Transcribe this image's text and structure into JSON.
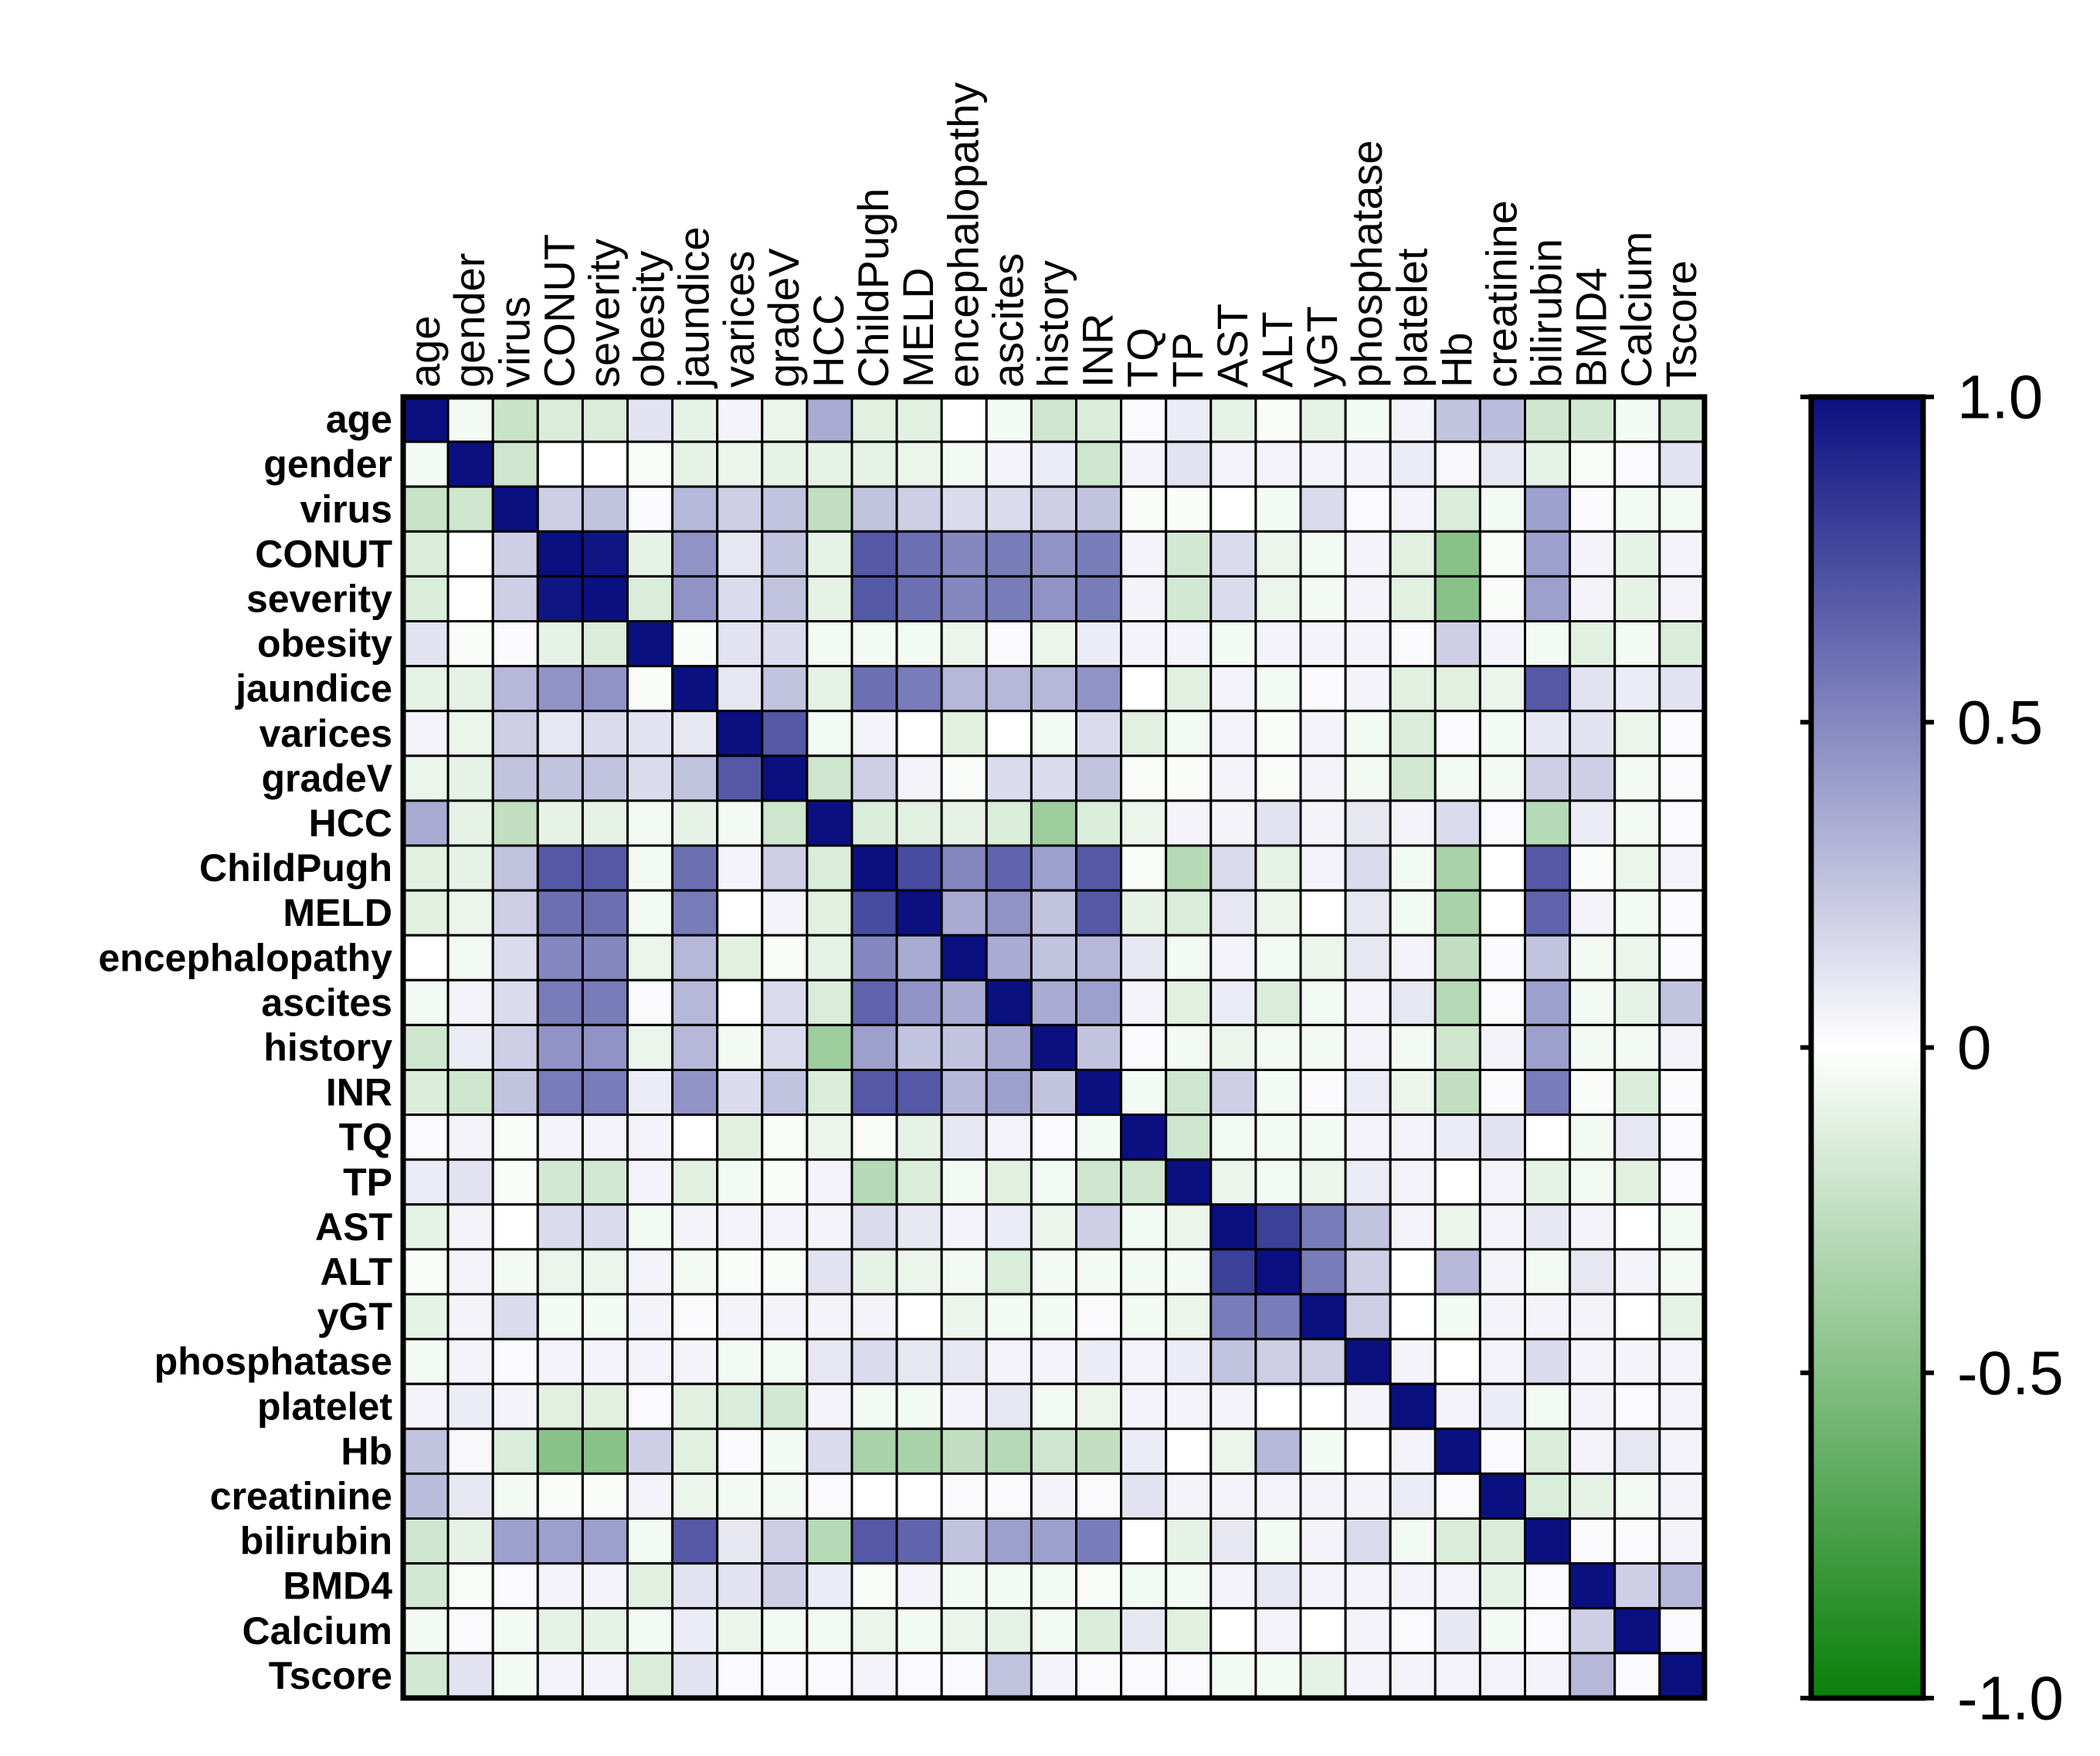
{
  "chart_data": {
    "type": "heatmap",
    "title": "",
    "variables": [
      "age",
      "gender",
      "virus",
      "CONUT",
      "severity",
      "obesity",
      "jaundice",
      "varices",
      "gradeV",
      "HCC",
      "ChildPugh",
      "MELD",
      "encephalopathy",
      "ascites",
      "history",
      "INR",
      "TQ",
      "TP",
      "AST",
      "ALT",
      "yGT",
      "phosphatase",
      "platelet",
      "Hb",
      "creatinine",
      "bilirubin",
      "BMD4",
      "Calcium",
      "Tscore"
    ],
    "x_tick_labels": [
      "age",
      "gender",
      "virus",
      "CONUT",
      "severity",
      "obesity",
      "jaundice",
      "varices",
      "gradeV",
      "HCC",
      "ChildPugh",
      "MELD",
      "encephalopathy",
      "ascites",
      "history",
      "INR",
      "TQ",
      "TP",
      "AST",
      "ALT",
      "yGT",
      "phosphatase",
      "platelet",
      "Hb",
      "creatinine",
      "bilirubin",
      "BMD4",
      "Calcium",
      "Tscore"
    ],
    "y_tick_labels": [
      "age",
      "gender",
      "virus",
      "CONUT",
      "severity",
      "obesity",
      "jaundice",
      "varices",
      "gradeV",
      "HCC",
      "ChildPugh",
      "MELD",
      "encephalopathy",
      "ascites",
      "history",
      "INR",
      "TQ",
      "TP",
      "AST",
      "ALT",
      "yGT",
      "phosphatase",
      "platelet",
      "Hb",
      "creatinine",
      "bilirubin",
      "BMD4",
      "Calcium",
      "Tscore"
    ],
    "color_scale": {
      "min": -1.0,
      "max": 1.0,
      "min_color": "#0a7f0a",
      "mid_color": "#ffffff",
      "max_color": "#0a1080",
      "ticks": [
        1.0,
        0.5,
        0,
        -0.5,
        -1.0
      ],
      "tick_labels": [
        "1.0",
        "0.5",
        "0",
        "-0.5",
        "-1.0"
      ],
      "position": "right"
    },
    "matrix": [
      [
        1.0,
        -0.05,
        -0.22,
        -0.15,
        -0.15,
        0.12,
        -0.1,
        0.05,
        -0.08,
        0.35,
        -0.12,
        -0.12,
        0.0,
        -0.05,
        -0.2,
        -0.15,
        0.02,
        0.08,
        -0.1,
        -0.02,
        -0.1,
        -0.05,
        0.05,
        0.25,
        0.28,
        -0.2,
        -0.18,
        -0.05,
        -0.18
      ],
      [
        -0.05,
        1.0,
        -0.2,
        0.0,
        0.0,
        -0.02,
        -0.1,
        -0.08,
        -0.1,
        -0.1,
        -0.1,
        -0.08,
        -0.05,
        0.05,
        0.08,
        -0.2,
        0.05,
        0.12,
        0.05,
        0.05,
        0.05,
        0.05,
        0.08,
        0.03,
        0.1,
        -0.1,
        -0.03,
        0.02,
        0.12
      ],
      [
        -0.22,
        -0.2,
        1.0,
        0.2,
        0.25,
        0.02,
        0.3,
        0.2,
        0.25,
        -0.25,
        0.25,
        0.2,
        0.15,
        0.15,
        0.2,
        0.25,
        -0.02,
        -0.02,
        0.0,
        -0.05,
        0.15,
        0.02,
        0.05,
        -0.15,
        -0.05,
        0.4,
        0.02,
        -0.05,
        -0.05
      ],
      [
        -0.15,
        0.0,
        0.2,
        1.0,
        0.98,
        -0.1,
        0.45,
        0.1,
        0.25,
        -0.1,
        0.7,
        0.6,
        0.5,
        0.55,
        0.45,
        0.55,
        0.05,
        -0.18,
        0.15,
        -0.08,
        -0.05,
        0.05,
        -0.12,
        -0.48,
        -0.02,
        0.4,
        0.05,
        -0.1,
        0.05
      ],
      [
        -0.15,
        0.0,
        0.2,
        0.98,
        1.0,
        -0.15,
        0.45,
        0.15,
        0.25,
        -0.1,
        0.7,
        0.6,
        0.5,
        0.55,
        0.45,
        0.55,
        0.05,
        -0.18,
        0.15,
        -0.08,
        -0.05,
        0.05,
        -0.12,
        -0.48,
        -0.02,
        0.4,
        0.05,
        -0.1,
        0.05
      ],
      [
        0.12,
        -0.02,
        0.02,
        -0.1,
        -0.15,
        1.0,
        -0.02,
        0.12,
        0.15,
        -0.05,
        -0.05,
        -0.05,
        -0.08,
        0.02,
        -0.08,
        0.08,
        0.05,
        0.05,
        -0.05,
        0.05,
        0.05,
        0.05,
        0.02,
        0.2,
        0.05,
        -0.05,
        -0.12,
        -0.05,
        -0.15
      ],
      [
        -0.1,
        -0.1,
        0.3,
        0.45,
        0.45,
        -0.02,
        1.0,
        0.1,
        0.25,
        -0.1,
        0.6,
        0.55,
        0.3,
        0.3,
        0.3,
        0.45,
        0.0,
        -0.12,
        0.05,
        -0.05,
        0.02,
        0.05,
        -0.12,
        -0.12,
        -0.08,
        0.7,
        0.12,
        0.08,
        0.12
      ],
      [
        0.05,
        -0.08,
        0.2,
        0.1,
        0.15,
        0.12,
        0.1,
        1.0,
        0.7,
        -0.05,
        0.05,
        0.0,
        -0.12,
        0.0,
        -0.05,
        0.15,
        -0.12,
        -0.05,
        0.05,
        -0.02,
        0.05,
        -0.05,
        -0.15,
        0.02,
        -0.05,
        0.1,
        0.12,
        -0.08,
        0.02
      ],
      [
        -0.08,
        -0.1,
        0.25,
        0.25,
        0.25,
        0.15,
        0.25,
        0.7,
        1.0,
        -0.2,
        0.2,
        0.05,
        -0.02,
        0.15,
        0.15,
        0.25,
        -0.02,
        -0.02,
        0.05,
        -0.02,
        0.05,
        -0.05,
        -0.18,
        -0.05,
        -0.05,
        0.2,
        0.2,
        -0.05,
        0.02
      ],
      [
        0.35,
        -0.1,
        -0.25,
        -0.1,
        -0.1,
        -0.05,
        -0.1,
        -0.05,
        -0.2,
        1.0,
        -0.15,
        -0.12,
        -0.1,
        -0.15,
        -0.4,
        -0.15,
        -0.08,
        0.05,
        0.05,
        0.12,
        0.05,
        0.1,
        0.05,
        0.15,
        0.02,
        -0.3,
        0.08,
        -0.05,
        0.02
      ],
      [
        -0.12,
        -0.1,
        0.25,
        0.7,
        0.7,
        -0.05,
        0.6,
        0.05,
        0.2,
        -0.15,
        1.0,
        0.75,
        0.5,
        0.65,
        0.4,
        0.7,
        -0.02,
        -0.3,
        0.15,
        -0.1,
        0.05,
        0.15,
        -0.05,
        -0.35,
        0.0,
        0.7,
        -0.02,
        -0.08,
        0.05
      ],
      [
        -0.12,
        -0.08,
        0.2,
        0.6,
        0.6,
        -0.05,
        0.55,
        0.0,
        0.05,
        -0.12,
        0.75,
        1.0,
        0.35,
        0.45,
        0.25,
        0.7,
        -0.1,
        -0.15,
        0.1,
        -0.08,
        0.0,
        0.1,
        -0.05,
        -0.35,
        0.0,
        0.65,
        0.05,
        -0.05,
        0.02
      ],
      [
        0.0,
        -0.05,
        0.15,
        0.5,
        0.5,
        -0.08,
        0.3,
        -0.12,
        -0.02,
        -0.1,
        0.5,
        0.35,
        1.0,
        0.35,
        0.25,
        0.3,
        0.1,
        -0.05,
        0.05,
        -0.05,
        -0.08,
        0.1,
        0.05,
        -0.25,
        0.02,
        0.25,
        -0.05,
        -0.08,
        0.02
      ],
      [
        -0.05,
        0.05,
        0.15,
        0.55,
        0.55,
        0.02,
        0.3,
        0.0,
        0.15,
        -0.15,
        0.65,
        0.45,
        0.35,
        1.0,
        0.35,
        0.4,
        0.05,
        -0.12,
        0.08,
        -0.15,
        -0.05,
        0.05,
        0.1,
        -0.3,
        0.02,
        0.4,
        -0.05,
        -0.1,
        0.25
      ],
      [
        -0.2,
        0.08,
        0.2,
        0.45,
        0.45,
        -0.08,
        0.3,
        -0.05,
        0.15,
        -0.4,
        0.4,
        0.25,
        0.25,
        0.35,
        1.0,
        0.25,
        0.02,
        -0.05,
        -0.08,
        -0.05,
        -0.05,
        0.05,
        -0.05,
        -0.2,
        0.05,
        0.4,
        -0.05,
        -0.05,
        0.05
      ],
      [
        -0.15,
        -0.2,
        0.25,
        0.55,
        0.55,
        0.08,
        0.45,
        0.15,
        0.25,
        -0.15,
        0.7,
        0.7,
        0.3,
        0.4,
        0.25,
        1.0,
        -0.05,
        -0.2,
        0.2,
        -0.05,
        0.02,
        0.08,
        -0.08,
        -0.25,
        0.02,
        0.55,
        -0.02,
        -0.15,
        0.02
      ],
      [
        0.02,
        0.05,
        -0.02,
        0.05,
        0.05,
        0.05,
        0.0,
        -0.12,
        -0.02,
        -0.08,
        -0.02,
        -0.1,
        0.1,
        0.05,
        0.02,
        -0.05,
        1.0,
        -0.2,
        -0.05,
        -0.05,
        -0.05,
        0.05,
        0.05,
        0.08,
        0.12,
        0.0,
        -0.05,
        0.1,
        0.02
      ],
      [
        0.08,
        0.12,
        -0.02,
        -0.18,
        -0.18,
        0.05,
        -0.12,
        -0.05,
        -0.02,
        0.05,
        -0.3,
        -0.15,
        -0.05,
        -0.12,
        -0.05,
        -0.2,
        -0.2,
        1.0,
        -0.08,
        -0.05,
        -0.08,
        0.08,
        0.05,
        0.0,
        0.05,
        -0.1,
        -0.05,
        -0.12,
        0.02
      ],
      [
        -0.1,
        0.05,
        0.0,
        0.15,
        0.15,
        -0.05,
        0.05,
        0.05,
        0.05,
        0.05,
        0.15,
        0.1,
        0.05,
        0.08,
        -0.08,
        0.2,
        -0.05,
        -0.08,
        1.0,
        0.8,
        0.55,
        0.25,
        0.05,
        -0.08,
        0.05,
        0.1,
        0.05,
        0.0,
        -0.05
      ],
      [
        -0.02,
        0.05,
        -0.05,
        -0.08,
        -0.08,
        0.05,
        -0.05,
        -0.02,
        -0.02,
        0.12,
        -0.1,
        -0.08,
        -0.05,
        -0.15,
        -0.05,
        -0.05,
        -0.05,
        -0.05,
        0.8,
        1.0,
        0.55,
        0.2,
        0.0,
        0.3,
        0.05,
        -0.05,
        0.1,
        0.05,
        -0.05
      ],
      [
        -0.1,
        0.05,
        0.15,
        -0.05,
        -0.05,
        0.05,
        0.02,
        0.05,
        0.05,
        0.05,
        0.05,
        0.0,
        -0.08,
        -0.05,
        -0.05,
        0.02,
        -0.05,
        -0.08,
        0.55,
        0.55,
        1.0,
        0.2,
        0.0,
        -0.05,
        0.05,
        0.05,
        0.05,
        0.0,
        -0.1
      ],
      [
        -0.05,
        0.05,
        0.02,
        0.05,
        0.05,
        0.05,
        0.05,
        -0.05,
        -0.05,
        0.1,
        0.15,
        0.1,
        0.1,
        0.05,
        0.05,
        0.08,
        0.05,
        0.08,
        0.25,
        0.2,
        0.2,
        1.0,
        0.05,
        0.0,
        0.05,
        0.15,
        0.05,
        0.05,
        0.05
      ],
      [
        0.05,
        0.08,
        0.05,
        -0.12,
        -0.12,
        0.02,
        -0.12,
        -0.15,
        -0.18,
        0.05,
        -0.05,
        -0.05,
        0.05,
        0.1,
        -0.05,
        -0.08,
        0.05,
        0.05,
        0.05,
        0.0,
        0.0,
        0.05,
        1.0,
        0.05,
        0.08,
        -0.05,
        0.05,
        0.02,
        0.05
      ],
      [
        0.25,
        0.03,
        -0.15,
        -0.48,
        -0.48,
        0.2,
        -0.12,
        0.02,
        -0.05,
        0.15,
        -0.35,
        -0.35,
        -0.25,
        -0.3,
        -0.2,
        -0.25,
        0.08,
        0.0,
        -0.08,
        0.3,
        -0.05,
        0.0,
        0.05,
        1.0,
        0.02,
        -0.15,
        0.05,
        0.1,
        0.05
      ],
      [
        0.28,
        0.1,
        -0.05,
        -0.02,
        -0.02,
        0.05,
        -0.08,
        -0.05,
        -0.05,
        0.02,
        0.0,
        0.0,
        0.02,
        0.02,
        0.05,
        0.02,
        0.12,
        0.05,
        0.05,
        0.05,
        0.05,
        0.05,
        0.08,
        0.02,
        1.0,
        -0.15,
        -0.1,
        -0.05,
        0.05
      ],
      [
        -0.2,
        -0.1,
        0.4,
        0.4,
        0.4,
        -0.05,
        0.7,
        0.1,
        0.2,
        -0.3,
        0.7,
        0.65,
        0.25,
        0.4,
        0.4,
        0.55,
        0.0,
        -0.1,
        0.1,
        -0.05,
        0.05,
        0.15,
        -0.05,
        -0.15,
        -0.15,
        1.0,
        0.02,
        0.02,
        0.05
      ],
      [
        -0.18,
        -0.03,
        0.02,
        0.05,
        0.05,
        -0.12,
        0.12,
        0.12,
        0.2,
        0.08,
        -0.02,
        0.05,
        -0.05,
        -0.05,
        -0.05,
        -0.02,
        -0.05,
        -0.05,
        0.05,
        0.1,
        0.05,
        0.05,
        0.05,
        0.05,
        -0.1,
        0.02,
        1.0,
        0.2,
        0.3
      ],
      [
        -0.05,
        0.02,
        -0.05,
        -0.1,
        -0.1,
        -0.05,
        0.08,
        -0.08,
        -0.05,
        -0.05,
        -0.08,
        -0.05,
        -0.08,
        -0.1,
        -0.05,
        -0.15,
        0.1,
        -0.12,
        0.0,
        0.05,
        0.0,
        0.05,
        0.02,
        0.1,
        -0.05,
        0.02,
        0.2,
        1.0,
        0.02
      ],
      [
        -0.18,
        0.12,
        -0.05,
        0.05,
        0.05,
        -0.15,
        0.12,
        0.02,
        0.02,
        0.02,
        0.05,
        0.02,
        0.02,
        0.25,
        0.05,
        0.02,
        0.02,
        0.02,
        -0.05,
        -0.05,
        -0.1,
        0.05,
        0.05,
        0.05,
        0.05,
        0.05,
        0.3,
        0.02,
        1.0
      ]
    ]
  }
}
